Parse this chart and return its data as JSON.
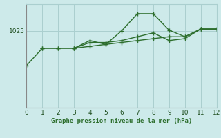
{
  "title": "Graphe pression niveau de la mer (hPa)",
  "bg_color": "#cdeaea",
  "grid_color": "#aacfcf",
  "line_color": "#2d6e2d",
  "x": [
    0,
    1,
    2,
    3,
    4,
    5,
    6,
    7,
    8,
    9,
    10,
    11,
    12
  ],
  "line1": [
    1016.0,
    1020.5,
    1020.5,
    1020.5,
    1022.5,
    1021.5,
    1025.0,
    1029.5,
    1029.5,
    1025.2,
    1023.5,
    1025.5,
    1025.5
  ],
  "line2": [
    null,
    1020.5,
    1020.5,
    1020.5,
    1022.0,
    1022.0,
    1022.5,
    1023.5,
    1024.5,
    1022.5,
    1023.0,
    1025.5,
    1025.5
  ],
  "line3": [
    null,
    null,
    null,
    1020.5,
    1021.0,
    1021.5,
    1022.0,
    1022.5,
    1023.0,
    1023.5,
    1023.5,
    1025.5,
    1025.5
  ],
  "yticks": [
    1025
  ],
  "xlim": [
    0,
    12
  ],
  "ylim": [
    1005,
    1032
  ]
}
